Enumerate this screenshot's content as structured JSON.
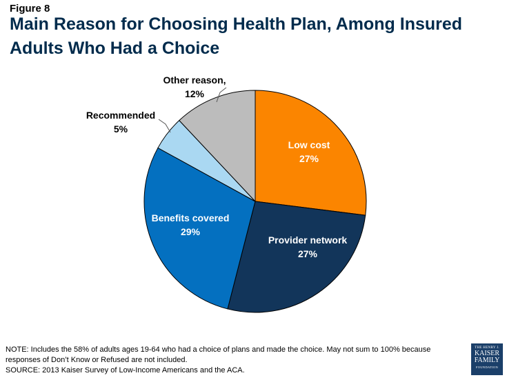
{
  "figure_label": "Figure 8",
  "title": "Main Reason for Choosing Health Plan, Among Insured Adults Who Had a Choice",
  "chart_data": {
    "type": "pie",
    "slices": [
      {
        "name": "Low cost",
        "value": 27,
        "label": "27%",
        "color": "#fb8500"
      },
      {
        "name": "Provider network",
        "value": 27,
        "label": "27%",
        "color": "#12355a"
      },
      {
        "name": "Benefits covered",
        "value": 29,
        "label": "29%",
        "color": "#0470c0"
      },
      {
        "name": "Recommended",
        "value": 5,
        "label": "5%",
        "color": "#aad8f2"
      },
      {
        "name": "Other reason,",
        "value": 12,
        "label": "12%",
        "color": "#bcbcbc"
      }
    ]
  },
  "note_line1": "NOTE: Includes the 58% of adults ages 19-64 who had a choice of plans and made the choice. May not sum to 100% because",
  "note_line2": "responses of Don’t Know or Refused are not included.",
  "source": "SOURCE: 2013 Kaiser Survey of Low-Income Americans and the ACA.",
  "logo": {
    "line1": "THE HENRY J.",
    "line2": "KAISER",
    "line3": "FAMILY",
    "line4": "FOUNDATION"
  }
}
